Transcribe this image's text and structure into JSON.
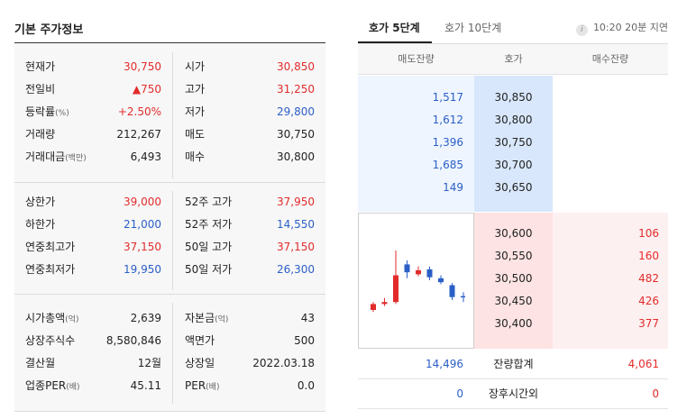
{
  "basic": {
    "title": "기본 주가정보",
    "rows": [
      {
        "lk": "현재가",
        "lk_sub": "",
        "lv": "30,750",
        "lv_color": "red",
        "rk": "시가",
        "rk_sub": "",
        "rv": "30,850",
        "rv_color": "red"
      },
      {
        "lk": "전일비",
        "lk_sub": "",
        "lv": "▲750",
        "lv_color": "red",
        "rk": "고가",
        "rk_sub": "",
        "rv": "31,250",
        "rv_color": "red"
      },
      {
        "lk": "등락률",
        "lk_sub": "(%)",
        "lv": "+2.50%",
        "lv_color": "red",
        "rk": "저가",
        "rk_sub": "",
        "rv": "29,800",
        "rv_color": "blue"
      },
      {
        "lk": "거래량",
        "lk_sub": "",
        "lv": "212,267",
        "lv_color": "black",
        "rk": "매도",
        "rk_sub": "",
        "rv": "30,750",
        "rv_color": "black"
      },
      {
        "lk": "거래대금",
        "lk_sub": "(백만)",
        "lv": "6,493",
        "lv_color": "black",
        "rk": "매수",
        "rk_sub": "",
        "rv": "30,800",
        "rv_color": "black"
      },
      {
        "lk": "상한가",
        "lk_sub": "",
        "lv": "39,000",
        "lv_color": "red",
        "rk": "52주 고가",
        "rk_sub": "",
        "rv": "37,950",
        "rv_color": "red"
      },
      {
        "lk": "하한가",
        "lk_sub": "",
        "lv": "21,000",
        "lv_color": "blue",
        "rk": "52주 저가",
        "rk_sub": "",
        "rv": "14,550",
        "rv_color": "blue"
      },
      {
        "lk": "연중최고가",
        "lk_sub": "",
        "lv": "37,150",
        "lv_color": "red",
        "rk": "50일 고가",
        "rk_sub": "",
        "rv": "37,150",
        "rv_color": "red"
      },
      {
        "lk": "연중최저가",
        "lk_sub": "",
        "lv": "19,950",
        "lv_color": "blue",
        "rk": "50일 저가",
        "rk_sub": "",
        "rv": "26,300",
        "rv_color": "blue"
      },
      {
        "lk": "시가총액",
        "lk_sub": "(억)",
        "lv": "2,639",
        "lv_color": "black",
        "rk": "자본금",
        "rk_sub": "(억)",
        "rv": "43",
        "rv_color": "black"
      },
      {
        "lk": "상장주식수",
        "lk_sub": "",
        "lv": "8,580,846",
        "lv_color": "black",
        "rk": "액면가",
        "rk_sub": "",
        "rv": "500",
        "rv_color": "black"
      },
      {
        "lk": "결산월",
        "lk_sub": "",
        "lv": "12월",
        "lv_color": "black",
        "rk": "상장일",
        "rk_sub": "",
        "rv": "2022.03.18",
        "rv_color": "black"
      },
      {
        "lk": "업종PER",
        "lk_sub": "(배)",
        "lv": "45.11",
        "lv_color": "black",
        "rk": "PER",
        "rk_sub": "(배)",
        "rv": "0.0",
        "rv_color": "black"
      }
    ]
  },
  "orderbook": {
    "tab_active": "호가 5단계",
    "tab_inactive": "호가 10단계",
    "info_icon": "i",
    "delay_text": "10:20 20분 지연",
    "headers": {
      "ask": "매도잔량",
      "price": "호가",
      "bid": "매수잔량"
    },
    "asks": [
      {
        "vol": "1,517",
        "price": "30,850"
      },
      {
        "vol": "1,612",
        "price": "30,800"
      },
      {
        "vol": "1,396",
        "price": "30,750"
      },
      {
        "vol": "1,685",
        "price": "30,700"
      },
      {
        "vol": "149",
        "price": "30,650"
      }
    ],
    "bids": [
      {
        "price": "30,600",
        "vol": "106"
      },
      {
        "price": "30,550",
        "vol": "160"
      },
      {
        "price": "30,500",
        "vol": "482"
      },
      {
        "price": "30,450",
        "vol": "426"
      },
      {
        "price": "30,400",
        "vol": "377"
      }
    ],
    "summary": [
      {
        "left": "14,496",
        "label": "잔량합계",
        "right": "4,061"
      },
      {
        "left": "0",
        "label": "장후시간외",
        "right": "0"
      }
    ],
    "colors": {
      "up": "#e32b2b",
      "down": "#2b5fc7",
      "ask_bg": "#eef5ff",
      "bid_bg": "#fde3e3"
    }
  },
  "minichart": {
    "candles": [
      {
        "open": 0.2,
        "close": 0.26,
        "high": 0.28,
        "low": 0.18,
        "dir": "up"
      },
      {
        "open": 0.26,
        "close": 0.28,
        "high": 0.32,
        "low": 0.24,
        "dir": "up"
      },
      {
        "open": 0.28,
        "close": 0.55,
        "high": 0.8,
        "low": 0.26,
        "dir": "up"
      },
      {
        "open": 0.66,
        "close": 0.58,
        "high": 0.7,
        "low": 0.52,
        "dir": "down"
      },
      {
        "open": 0.56,
        "close": 0.6,
        "high": 0.64,
        "low": 0.54,
        "dir": "up"
      },
      {
        "open": 0.61,
        "close": 0.53,
        "high": 0.64,
        "low": 0.5,
        "dir": "down"
      },
      {
        "open": 0.52,
        "close": 0.48,
        "high": 0.55,
        "low": 0.46,
        "dir": "down"
      },
      {
        "open": 0.45,
        "close": 0.33,
        "high": 0.47,
        "low": 0.3,
        "dir": "down"
      },
      {
        "open": 0.32,
        "close": 0.34,
        "high": 0.38,
        "low": 0.28,
        "dir": "flat"
      }
    ]
  }
}
